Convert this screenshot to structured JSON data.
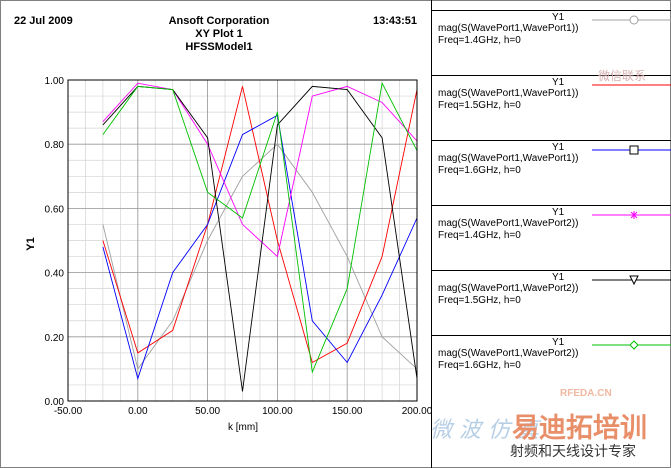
{
  "header": {
    "date": "22 Jul 2009",
    "company": "Ansoft Corporation",
    "plot_name": "XY Plot 1",
    "model": "HFSSModel1",
    "time": "13:43:51"
  },
  "legend": [
    {
      "title": "Y1",
      "expr": "mag(S(WavePort1,WavePort1))",
      "cond": "Freq=1.4GHz, h=0",
      "color": "#a0a0a0",
      "marker": "circle-icon"
    },
    {
      "title": "Y1",
      "expr": "mag(S(WavePort1,WavePort1))",
      "cond": "Freq=1.5GHz, h=0",
      "color": "#ff0000",
      "marker": "line-icon"
    },
    {
      "title": "Y1",
      "expr": "mag(S(WavePort1,WavePort1))",
      "cond": "Freq=1.6GHz, h=0",
      "color": "#0000ff",
      "marker": "square-icon"
    },
    {
      "title": "Y1",
      "expr": "mag(S(WavePort1,WavePort2))",
      "cond": "Freq=1.4GHz, h=0",
      "color": "#ff00ff",
      "marker": "asterisk-icon"
    },
    {
      "title": "Y1",
      "expr": "mag(S(WavePort1,WavePort2))",
      "cond": "Freq=1.5GHz, h=0",
      "color": "#000000",
      "marker": "triangle-down-icon"
    },
    {
      "title": "Y1",
      "expr": "mag(S(WavePort1,WavePort2))",
      "cond": "Freq=1.6GHz, h=0",
      "color": "#00c000",
      "marker": "diamond-icon"
    }
  ],
  "watermark": {
    "text1": "微信联系",
    "text2": "易迪拓培训",
    "text3": "射频和天线设计专家",
    "text4": "微 波 仿 真",
    "text5": "RFEDA.CN"
  },
  "chart_data": {
    "type": "line",
    "xlabel": "k [mm]",
    "ylabel": "Y1",
    "xlim": [
      -50,
      200
    ],
    "ylim": [
      0,
      1
    ],
    "xticks": [
      "-50.00",
      "0.00",
      "50.00",
      "100.00",
      "150.00",
      "200.00"
    ],
    "yticks": [
      "0.00",
      "0.20",
      "0.40",
      "0.60",
      "0.80",
      "1.00"
    ],
    "grid": true,
    "series": [
      {
        "color": "#a0a0a0",
        "x": [
          -25,
          0,
          25,
          50,
          75,
          100,
          125,
          150,
          175,
          200
        ],
        "y": [
          0.55,
          0.1,
          0.25,
          0.5,
          0.7,
          0.8,
          0.65,
          0.45,
          0.2,
          0.1
        ]
      },
      {
        "color": "#ff0000",
        "x": [
          -25,
          0,
          25,
          50,
          75,
          100,
          125,
          150,
          175,
          200
        ],
        "y": [
          0.5,
          0.15,
          0.22,
          0.55,
          0.98,
          0.5,
          0.12,
          0.18,
          0.45,
          0.97
        ]
      },
      {
        "color": "#0000ff",
        "x": [
          -25,
          0,
          25,
          50,
          75,
          100,
          125,
          150,
          175,
          200
        ],
        "y": [
          0.48,
          0.07,
          0.4,
          0.55,
          0.83,
          0.89,
          0.25,
          0.12,
          0.33,
          0.57
        ]
      },
      {
        "color": "#ff00ff",
        "x": [
          -25,
          0,
          25,
          50,
          75,
          100,
          125,
          150,
          175,
          200
        ],
        "y": [
          0.87,
          0.99,
          0.97,
          0.8,
          0.55,
          0.45,
          0.95,
          0.98,
          0.93,
          0.81
        ]
      },
      {
        "color": "#000000",
        "x": [
          -25,
          0,
          25,
          50,
          75,
          100,
          125,
          150,
          175,
          200
        ],
        "y": [
          0.86,
          0.98,
          0.97,
          0.82,
          0.03,
          0.86,
          0.98,
          0.97,
          0.82,
          0.07
        ]
      },
      {
        "color": "#00c000",
        "x": [
          -25,
          0,
          25,
          50,
          75,
          100,
          125,
          150,
          175,
          200
        ],
        "y": [
          0.83,
          0.98,
          0.97,
          0.65,
          0.57,
          0.9,
          0.09,
          0.35,
          0.99,
          0.78
        ]
      }
    ]
  }
}
